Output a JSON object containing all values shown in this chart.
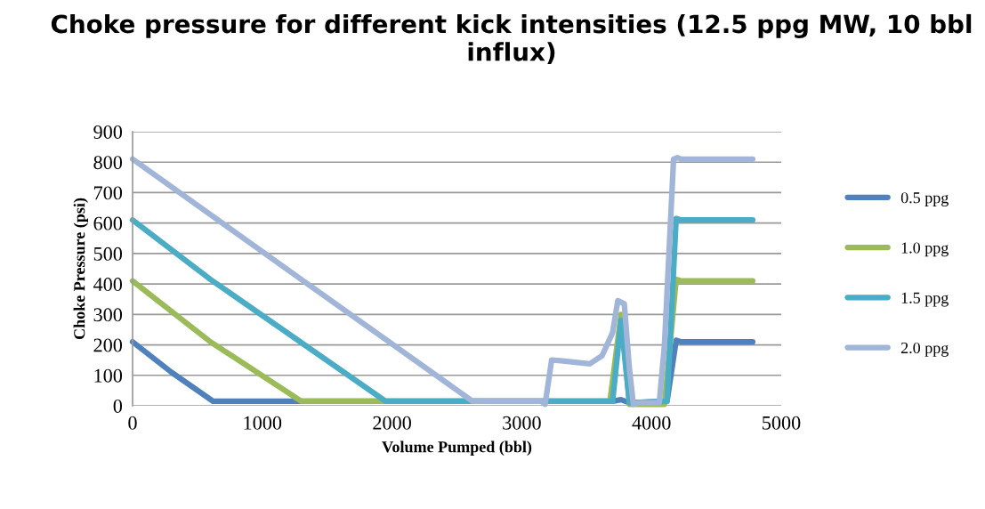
{
  "chart_data": {
    "type": "line",
    "title": "Choke pressure for different kick intensities (12.5 ppg MW, 10 bbl influx)",
    "xlabel": "Volume Pumped (bbl)",
    "ylabel": "Choke Pressure (psi)",
    "xlim": [
      0,
      5000
    ],
    "xticks": [
      0,
      1000,
      2000,
      3000,
      4000,
      5000
    ],
    "ylim": [
      0,
      900
    ],
    "yticks": [
      0,
      100,
      200,
      300,
      400,
      500,
      600,
      700,
      800,
      900
    ],
    "grid": "y",
    "legend": "right",
    "marker": "none",
    "line_style": "solid",
    "series": [
      {
        "name": "0.5 ppg",
        "color": "#4f81bd",
        "x": [
          0,
          300,
          620,
          700,
          3700,
          3765,
          3830,
          4120,
          4190,
          4230,
          4780
        ],
        "values": [
          210,
          110,
          15,
          15,
          15,
          20,
          10,
          15,
          215,
          210,
          210
        ]
      },
      {
        "name": "1.0 ppg",
        "color": "#9bbb59",
        "x": [
          0,
          600,
          1300,
          1400,
          3680,
          3765,
          3830,
          4100,
          4190,
          4230,
          4780
        ],
        "values": [
          410,
          210,
          15,
          15,
          15,
          300,
          5,
          5,
          415,
          410,
          410
        ]
      },
      {
        "name": "1.5 ppg",
        "color": "#4bacc6",
        "x": [
          0,
          600,
          1950,
          2050,
          3700,
          3765,
          3830,
          4120,
          4190,
          4230,
          4780
        ],
        "values": [
          610,
          415,
          15,
          15,
          15,
          280,
          10,
          15,
          615,
          610,
          610
        ]
      },
      {
        "name": "2.0 ppg",
        "color": "#a1b5d8",
        "x": [
          0,
          1300,
          2620,
          2700,
          3150,
          3180,
          3230,
          3300,
          3525,
          3620,
          3700,
          3740,
          3790,
          3830,
          3860,
          3900,
          4060,
          4100,
          4170,
          4200,
          4230,
          4780
        ],
        "values": [
          810,
          415,
          15,
          15,
          15,
          5,
          150,
          148,
          138,
          165,
          240,
          345,
          335,
          120,
          5,
          10,
          10,
          200,
          810,
          815,
          810,
          810
        ]
      }
    ]
  }
}
